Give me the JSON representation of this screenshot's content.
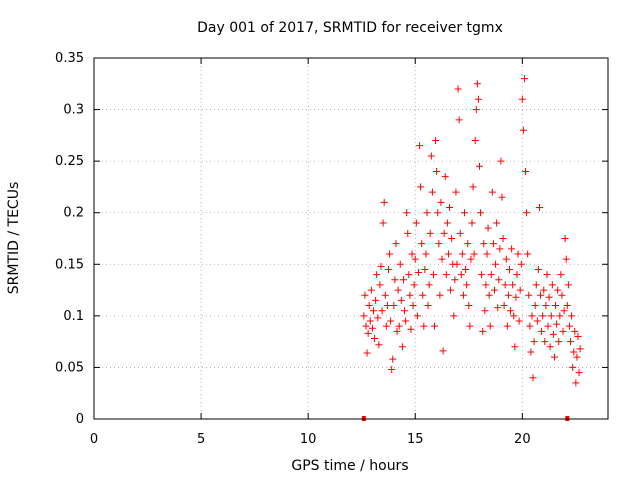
{
  "chart_data": {
    "type": "scatter",
    "title": "Day 001 of 2017, SRMTID for receiver tgmx",
    "xlabel": "GPS time / hours",
    "ylabel": "SRMTID / TECUs",
    "xlim": [
      0,
      24
    ],
    "ylim": [
      0,
      0.35
    ],
    "xticks": [
      0,
      5,
      10,
      15,
      20
    ],
    "xtick_labels": [
      "0",
      "5",
      "10",
      "15",
      "20"
    ],
    "yticks": [
      0,
      0.05,
      0.1,
      0.15,
      0.2,
      0.25,
      0.3,
      0.35
    ],
    "ytick_labels": [
      "0",
      "0.05",
      "0.1",
      "0.15",
      "0.2",
      "0.25",
      "0.3",
      "0.35"
    ],
    "grid": true,
    "marker": "+",
    "color": "#ff0000",
    "baseline_marks": [
      12.6,
      22.1
    ],
    "series": [
      {
        "name": "SRMTID",
        "points": [
          [
            12.6,
            0.1
          ],
          [
            12.65,
            0.12
          ],
          [
            12.7,
            0.09
          ],
          [
            12.75,
            0.064
          ],
          [
            12.8,
            0.083
          ],
          [
            12.85,
            0.11
          ],
          [
            12.9,
            0.095
          ],
          [
            12.95,
            0.125
          ],
          [
            13.0,
            0.088
          ],
          [
            13.05,
            0.105
          ],
          [
            13.1,
            0.078
          ],
          [
            13.15,
            0.115
          ],
          [
            13.2,
            0.14
          ],
          [
            13.25,
            0.098
          ],
          [
            13.3,
            0.072
          ],
          [
            13.35,
            0.13
          ],
          [
            13.4,
            0.148
          ],
          [
            13.45,
            0.105
          ],
          [
            13.5,
            0.19
          ],
          [
            13.55,
            0.21
          ],
          [
            13.6,
            0.12
          ],
          [
            13.65,
            0.09
          ],
          [
            13.7,
            0.11
          ],
          [
            13.75,
            0.145
          ],
          [
            13.8,
            0.16
          ],
          [
            13.85,
            0.095
          ],
          [
            13.9,
            0.048
          ],
          [
            13.95,
            0.058
          ],
          [
            14.0,
            0.11
          ],
          [
            14.05,
            0.135
          ],
          [
            14.1,
            0.17
          ],
          [
            14.15,
            0.085
          ],
          [
            14.2,
            0.125
          ],
          [
            14.25,
            0.09
          ],
          [
            14.3,
            0.15
          ],
          [
            14.35,
            0.115
          ],
          [
            14.4,
            0.07
          ],
          [
            14.45,
            0.135
          ],
          [
            14.5,
            0.105
          ],
          [
            14.55,
            0.095
          ],
          [
            14.6,
            0.2
          ],
          [
            14.65,
            0.18
          ],
          [
            14.7,
            0.14
          ],
          [
            14.75,
            0.12
          ],
          [
            14.8,
            0.087
          ],
          [
            14.85,
            0.16
          ],
          [
            14.9,
            0.11
          ],
          [
            14.95,
            0.13
          ],
          [
            15.0,
            0.155
          ],
          [
            15.05,
            0.19
          ],
          [
            15.1,
            0.1
          ],
          [
            15.15,
            0.142
          ],
          [
            15.2,
            0.265
          ],
          [
            15.25,
            0.225
          ],
          [
            15.3,
            0.17
          ],
          [
            15.35,
            0.12
          ],
          [
            15.4,
            0.09
          ],
          [
            15.45,
            0.145
          ],
          [
            15.5,
            0.16
          ],
          [
            15.55,
            0.2
          ],
          [
            15.6,
            0.11
          ],
          [
            15.65,
            0.13
          ],
          [
            15.7,
            0.18
          ],
          [
            15.75,
            0.255
          ],
          [
            15.8,
            0.22
          ],
          [
            15.85,
            0.14
          ],
          [
            15.9,
            0.09
          ],
          [
            15.95,
            0.27
          ],
          [
            16.0,
            0.24
          ],
          [
            16.05,
            0.2
          ],
          [
            16.1,
            0.17
          ],
          [
            16.15,
            0.12
          ],
          [
            16.2,
            0.21
          ],
          [
            16.25,
            0.155
          ],
          [
            16.3,
            0.066
          ],
          [
            16.35,
            0.18
          ],
          [
            16.4,
            0.235
          ],
          [
            16.45,
            0.14
          ],
          [
            16.5,
            0.19
          ],
          [
            16.55,
            0.16
          ],
          [
            16.6,
            0.205
          ],
          [
            16.65,
            0.125
          ],
          [
            16.7,
            0.175
          ],
          [
            16.75,
            0.15
          ],
          [
            16.8,
            0.1
          ],
          [
            16.85,
            0.135
          ],
          [
            16.9,
            0.22
          ],
          [
            16.95,
            0.15
          ],
          [
            17.0,
            0.32
          ],
          [
            17.05,
            0.29
          ],
          [
            17.1,
            0.18
          ],
          [
            17.15,
            0.14
          ],
          [
            17.2,
            0.16
          ],
          [
            17.25,
            0.12
          ],
          [
            17.3,
            0.2
          ],
          [
            17.35,
            0.145
          ],
          [
            17.4,
            0.13
          ],
          [
            17.45,
            0.17
          ],
          [
            17.5,
            0.11
          ],
          [
            17.55,
            0.09
          ],
          [
            17.6,
            0.155
          ],
          [
            17.65,
            0.19
          ],
          [
            17.7,
            0.225
          ],
          [
            17.75,
            0.16
          ],
          [
            17.8,
            0.27
          ],
          [
            17.85,
            0.3
          ],
          [
            17.9,
            0.325
          ],
          [
            17.95,
            0.31
          ],
          [
            18.0,
            0.245
          ],
          [
            18.05,
            0.2
          ],
          [
            18.1,
            0.14
          ],
          [
            18.15,
            0.085
          ],
          [
            18.2,
            0.17
          ],
          [
            18.25,
            0.105
          ],
          [
            18.3,
            0.13
          ],
          [
            18.35,
            0.16
          ],
          [
            18.4,
            0.185
          ],
          [
            18.45,
            0.12
          ],
          [
            18.5,
            0.09
          ],
          [
            18.55,
            0.14
          ],
          [
            18.6,
            0.22
          ],
          [
            18.65,
            0.17
          ],
          [
            18.7,
            0.125
          ],
          [
            18.75,
            0.15
          ],
          [
            18.8,
            0.19
          ],
          [
            18.85,
            0.108
          ],
          [
            18.9,
            0.135
          ],
          [
            18.95,
            0.165
          ],
          [
            19.0,
            0.25
          ],
          [
            19.05,
            0.215
          ],
          [
            19.1,
            0.175
          ],
          [
            19.15,
            0.11
          ],
          [
            19.2,
            0.13
          ],
          [
            19.25,
            0.155
          ],
          [
            19.3,
            0.09
          ],
          [
            19.35,
            0.12
          ],
          [
            19.4,
            0.145
          ],
          [
            19.45,
            0.105
          ],
          [
            19.5,
            0.165
          ],
          [
            19.55,
            0.13
          ],
          [
            19.6,
            0.1
          ],
          [
            19.65,
            0.07
          ],
          [
            19.7,
            0.118
          ],
          [
            19.75,
            0.14
          ],
          [
            19.8,
            0.16
          ],
          [
            19.85,
            0.095
          ],
          [
            19.9,
            0.125
          ],
          [
            19.95,
            0.15
          ],
          [
            20.0,
            0.31
          ],
          [
            20.05,
            0.28
          ],
          [
            20.1,
            0.33
          ],
          [
            20.15,
            0.24
          ],
          [
            20.2,
            0.2
          ],
          [
            20.25,
            0.16
          ],
          [
            20.3,
            0.12
          ],
          [
            20.35,
            0.09
          ],
          [
            20.4,
            0.065
          ],
          [
            20.45,
            0.1
          ],
          [
            20.5,
            0.04
          ],
          [
            20.55,
            0.075
          ],
          [
            20.6,
            0.11
          ],
          [
            20.65,
            0.13
          ],
          [
            20.7,
            0.095
          ],
          [
            20.75,
            0.145
          ],
          [
            20.8,
            0.205
          ],
          [
            20.85,
            0.12
          ],
          [
            20.9,
            0.085
          ],
          [
            20.95,
            0.1
          ],
          [
            21.0,
            0.125
          ],
          [
            21.05,
            0.075
          ],
          [
            21.1,
            0.11
          ],
          [
            21.15,
            0.14
          ],
          [
            21.2,
            0.09
          ],
          [
            21.25,
            0.118
          ],
          [
            21.3,
            0.07
          ],
          [
            21.35,
            0.1
          ],
          [
            21.4,
            0.13
          ],
          [
            21.45,
            0.082
          ],
          [
            21.5,
            0.06
          ],
          [
            21.55,
            0.11
          ],
          [
            21.6,
            0.092
          ],
          [
            21.65,
            0.125
          ],
          [
            21.7,
            0.075
          ],
          [
            21.75,
            0.1
          ],
          [
            21.8,
            0.14
          ],
          [
            21.85,
            0.12
          ],
          [
            21.9,
            0.085
          ],
          [
            21.95,
            0.105
          ],
          [
            22.0,
            0.175
          ],
          [
            22.05,
            0.155
          ],
          [
            22.1,
            0.11
          ],
          [
            22.15,
            0.13
          ],
          [
            22.2,
            0.09
          ],
          [
            22.25,
            0.075
          ],
          [
            22.3,
            0.1
          ],
          [
            22.35,
            0.05
          ],
          [
            22.4,
            0.065
          ],
          [
            22.45,
            0.085
          ],
          [
            22.5,
            0.035
          ],
          [
            22.55,
            0.06
          ],
          [
            22.6,
            0.08
          ],
          [
            22.65,
            0.045
          ],
          [
            22.7,
            0.068
          ]
        ]
      }
    ]
  }
}
